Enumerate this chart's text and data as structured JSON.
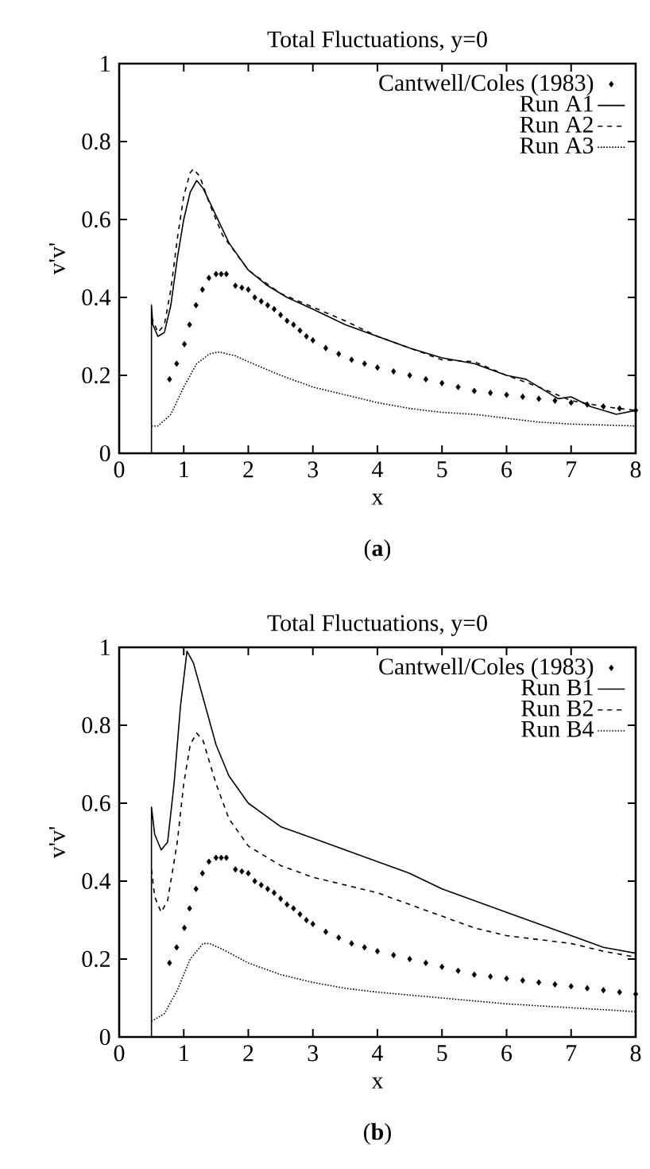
{
  "chart_data": [
    {
      "type": "line",
      "title": "Total Fluctuations, y=0",
      "xlabel": "x",
      "ylabel": "v'v'",
      "annotations": [
        "(**a**)"
      ],
      "xlim": [
        0,
        8
      ],
      "ylim": [
        0,
        1
      ],
      "xticks": [
        0,
        1,
        2,
        3,
        4,
        5,
        6,
        7,
        8
      ],
      "yticks": [
        0,
        0.2,
        0.4,
        0.6,
        0.8,
        1
      ],
      "legend": "top right",
      "series": [
        {
          "name": "Cantwell/Coles (1983)",
          "type": "scatter",
          "marker": "diamond",
          "color": "#000000",
          "x": [
            0.78,
            0.89,
            1.01,
            1.09,
            1.19,
            1.29,
            1.39,
            1.5,
            1.58,
            1.66,
            1.8,
            1.9,
            2.0,
            2.1,
            2.2,
            2.3,
            2.4,
            2.5,
            2.6,
            2.7,
            2.8,
            2.9,
            3.0,
            3.2,
            3.4,
            3.6,
            3.8,
            4.0,
            4.25,
            4.5,
            4.75,
            5.0,
            5.25,
            5.5,
            5.75,
            6.0,
            6.25,
            6.5,
            6.75,
            7.0,
            7.25,
            7.5,
            7.75,
            8.0
          ],
          "values": [
            0.19,
            0.23,
            0.28,
            0.33,
            0.38,
            0.42,
            0.45,
            0.46,
            0.46,
            0.46,
            0.43,
            0.425,
            0.42,
            0.4,
            0.39,
            0.38,
            0.37,
            0.355,
            0.34,
            0.33,
            0.315,
            0.3,
            0.29,
            0.27,
            0.255,
            0.24,
            0.23,
            0.22,
            0.21,
            0.2,
            0.19,
            0.18,
            0.17,
            0.16,
            0.155,
            0.15,
            0.145,
            0.14,
            0.135,
            0.13,
            0.125,
            0.12,
            0.115,
            0.11
          ]
        },
        {
          "name": "Run A1",
          "line_style": "solid",
          "color": "#000000",
          "x": [
            0.5,
            0.5,
            0.52,
            0.6,
            0.7,
            0.8,
            0.9,
            1.0,
            1.1,
            1.2,
            1.3,
            1.5,
            1.7,
            2.0,
            2.3,
            2.6,
            3.0,
            3.5,
            4.0,
            4.5,
            5.0,
            5.5,
            6.0,
            6.3,
            6.5,
            6.8,
            7.0,
            7.3,
            7.7,
            8.0
          ],
          "values": [
            0,
            0.38,
            0.33,
            0.3,
            0.31,
            0.38,
            0.5,
            0.6,
            0.67,
            0.7,
            0.68,
            0.61,
            0.54,
            0.47,
            0.43,
            0.4,
            0.37,
            0.33,
            0.3,
            0.27,
            0.245,
            0.23,
            0.2,
            0.19,
            0.17,
            0.14,
            0.145,
            0.12,
            0.1,
            0.11
          ]
        },
        {
          "name": "Run A2",
          "line_style": "dashed",
          "color": "#000000",
          "x": [
            0.5,
            0.6,
            0.7,
            0.8,
            0.9,
            1.0,
            1.1,
            1.15,
            1.25,
            1.4,
            1.6,
            2.0,
            2.5,
            3.0,
            3.5,
            4.0,
            4.5,
            5.0,
            5.5,
            6.0,
            6.5,
            7.0,
            7.5,
            8.0
          ],
          "values": [
            0.35,
            0.31,
            0.33,
            0.42,
            0.55,
            0.66,
            0.72,
            0.73,
            0.71,
            0.64,
            0.56,
            0.47,
            0.41,
            0.375,
            0.34,
            0.3,
            0.27,
            0.24,
            0.235,
            0.2,
            0.17,
            0.135,
            0.12,
            0.11
          ]
        },
        {
          "name": "Run A3",
          "line_style": "dotted",
          "color": "#000000",
          "x": [
            0.5,
            0.6,
            0.8,
            1.0,
            1.2,
            1.4,
            1.55,
            1.8,
            2.0,
            2.5,
            3.0,
            3.5,
            4.0,
            4.5,
            5.0,
            5.5,
            6.0,
            6.5,
            7.0,
            8.0
          ],
          "values": [
            0.07,
            0.07,
            0.1,
            0.17,
            0.23,
            0.255,
            0.26,
            0.25,
            0.235,
            0.2,
            0.17,
            0.15,
            0.13,
            0.115,
            0.105,
            0.1,
            0.09,
            0.08,
            0.075,
            0.07
          ]
        }
      ]
    },
    {
      "type": "line",
      "title": "Total Fluctuations, y=0",
      "xlabel": "x",
      "ylabel": "v'v'",
      "annotations": [
        "(**b**)"
      ],
      "xlim": [
        0,
        8
      ],
      "ylim": [
        0,
        1
      ],
      "xticks": [
        0,
        1,
        2,
        3,
        4,
        5,
        6,
        7,
        8
      ],
      "yticks": [
        0,
        0.2,
        0.4,
        0.6,
        0.8,
        1
      ],
      "legend": "top right",
      "series": [
        {
          "name": "Cantwell/Coles (1983)",
          "type": "scatter",
          "marker": "diamond",
          "color": "#000000",
          "x": [
            0.78,
            0.89,
            1.01,
            1.09,
            1.19,
            1.29,
            1.39,
            1.5,
            1.58,
            1.66,
            1.8,
            1.9,
            2.0,
            2.1,
            2.2,
            2.3,
            2.4,
            2.5,
            2.6,
            2.7,
            2.8,
            2.9,
            3.0,
            3.2,
            3.4,
            3.6,
            3.8,
            4.0,
            4.25,
            4.5,
            4.75,
            5.0,
            5.25,
            5.5,
            5.75,
            6.0,
            6.25,
            6.5,
            6.75,
            7.0,
            7.25,
            7.5,
            7.75,
            8.0
          ],
          "values": [
            0.19,
            0.23,
            0.28,
            0.33,
            0.38,
            0.42,
            0.45,
            0.46,
            0.46,
            0.46,
            0.43,
            0.425,
            0.42,
            0.4,
            0.39,
            0.38,
            0.37,
            0.355,
            0.34,
            0.33,
            0.315,
            0.3,
            0.29,
            0.27,
            0.255,
            0.24,
            0.23,
            0.22,
            0.21,
            0.2,
            0.19,
            0.18,
            0.17,
            0.16,
            0.155,
            0.15,
            0.145,
            0.14,
            0.135,
            0.13,
            0.125,
            0.12,
            0.115,
            0.11
          ]
        },
        {
          "name": "Run B1",
          "line_style": "solid",
          "color": "#000000",
          "x": [
            0.5,
            0.5,
            0.55,
            0.65,
            0.75,
            0.85,
            0.95,
            1.05,
            1.15,
            1.3,
            1.5,
            1.7,
            2.0,
            2.5,
            3.0,
            3.5,
            4.0,
            4.5,
            5.0,
            5.5,
            6.0,
            6.5,
            7.0,
            7.5,
            8.0
          ],
          "values": [
            0,
            0.59,
            0.52,
            0.48,
            0.5,
            0.65,
            0.85,
            0.99,
            0.96,
            0.87,
            0.75,
            0.67,
            0.6,
            0.54,
            0.51,
            0.48,
            0.45,
            0.42,
            0.38,
            0.35,
            0.32,
            0.29,
            0.26,
            0.23,
            0.215
          ]
        },
        {
          "name": "Run B2",
          "line_style": "dashed",
          "color": "#000000",
          "x": [
            0.5,
            0.55,
            0.65,
            0.75,
            0.9,
            1.0,
            1.1,
            1.2,
            1.3,
            1.5,
            1.7,
            2.0,
            2.5,
            3.0,
            3.5,
            4.0,
            4.5,
            5.0,
            5.5,
            6.0,
            6.5,
            7.0,
            7.5,
            8.0
          ],
          "values": [
            0.43,
            0.36,
            0.32,
            0.35,
            0.5,
            0.65,
            0.75,
            0.78,
            0.76,
            0.65,
            0.56,
            0.49,
            0.44,
            0.41,
            0.39,
            0.37,
            0.34,
            0.31,
            0.28,
            0.26,
            0.25,
            0.24,
            0.22,
            0.205
          ]
        },
        {
          "name": "Run B4",
          "line_style": "dotted",
          "color": "#000000",
          "x": [
            0.5,
            0.7,
            0.9,
            1.1,
            1.3,
            1.4,
            1.6,
            2.0,
            2.5,
            3.0,
            3.5,
            4.0,
            5.0,
            6.0,
            7.0,
            8.0
          ],
          "values": [
            0.04,
            0.06,
            0.12,
            0.2,
            0.24,
            0.24,
            0.225,
            0.19,
            0.16,
            0.14,
            0.125,
            0.115,
            0.1,
            0.085,
            0.075,
            0.065
          ]
        }
      ]
    }
  ]
}
